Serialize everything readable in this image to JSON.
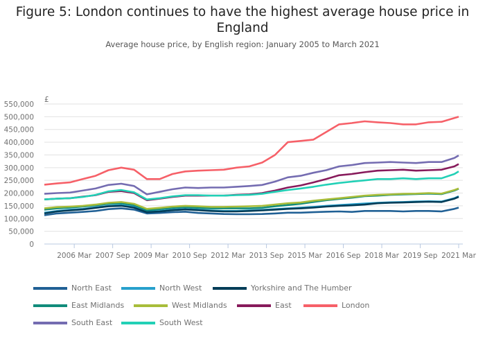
{
  "title": "Figure 5: London continues to have the highest average house price in England",
  "subtitle": "Average house price, by English region: January 2005 to March 2021",
  "chart_data": {
    "type": "line",
    "ylabel": "£",
    "ylim": [
      0,
      550000
    ],
    "yticks": [
      0,
      50000,
      100000,
      150000,
      200000,
      250000,
      300000,
      350000,
      400000,
      450000,
      500000,
      550000
    ],
    "ytick_labels": [
      "0",
      "50,000",
      "100,000",
      "150,000",
      "200,000",
      "250,000",
      "300,000",
      "350,000",
      "400,000",
      "450,000",
      "500,000",
      "550,000"
    ],
    "xlim": [
      "2005-01",
      "2021-03"
    ],
    "xticks": [
      "2006-03",
      "2007-09",
      "2009-03",
      "2010-09",
      "2012-03",
      "2013-09",
      "2015-03",
      "2016-09",
      "2018-03",
      "2019-09",
      "2021-03"
    ],
    "xtick_labels": [
      "2006 Mar",
      "2007 Sep",
      "2009 Mar",
      "2010 Sep",
      "2012 Mar",
      "2013 Sep",
      "2015 Mar",
      "2016 Sep",
      "2018 Mar",
      "2019 Sep",
      "2021 Mar"
    ],
    "grid": "horizontal",
    "legend_position": "bottom",
    "x": [
      "2005-01",
      "2005-07",
      "2006-01",
      "2006-07",
      "2007-01",
      "2007-07",
      "2008-01",
      "2008-07",
      "2009-01",
      "2009-07",
      "2010-01",
      "2010-07",
      "2011-01",
      "2011-07",
      "2012-01",
      "2012-07",
      "2013-01",
      "2013-07",
      "2014-01",
      "2014-07",
      "2015-01",
      "2015-07",
      "2016-01",
      "2016-07",
      "2017-01",
      "2017-07",
      "2018-01",
      "2018-07",
      "2019-01",
      "2019-07",
      "2020-01",
      "2020-07",
      "2021-01",
      "2021-03"
    ],
    "series": [
      {
        "name": "North East",
        "color": "#206095",
        "values": [
          113000,
          120000,
          123000,
          126000,
          130000,
          137000,
          140000,
          135000,
          120000,
          122000,
          125000,
          127000,
          122000,
          120000,
          118000,
          117000,
          117000,
          118000,
          120000,
          123000,
          123000,
          125000,
          127000,
          128000,
          126000,
          130000,
          130000,
          130000,
          128000,
          130000,
          130000,
          128000,
          138000,
          143000
        ]
      },
      {
        "name": "North West",
        "color": "#27a0cc",
        "values": [
          123000,
          130000,
          135000,
          138000,
          144000,
          150000,
          153000,
          146000,
          127000,
          130000,
          135000,
          138000,
          135000,
          132000,
          130000,
          130000,
          132000,
          134000,
          137000,
          140000,
          143000,
          146000,
          150000,
          153000,
          156000,
          159000,
          162000,
          164000,
          165000,
          167000,
          168000,
          167000,
          180000,
          188000
        ]
      },
      {
        "name": "Yorkshire and The Humber",
        "color": "#003c57",
        "values": [
          120000,
          128000,
          132000,
          136000,
          142000,
          148000,
          150000,
          143000,
          125000,
          128000,
          133000,
          136000,
          133000,
          130000,
          128000,
          128000,
          130000,
          132000,
          135000,
          138000,
          140000,
          143000,
          147000,
          150000,
          152000,
          155000,
          160000,
          162000,
          163000,
          165000,
          166000,
          165000,
          178000,
          185000
        ]
      },
      {
        "name": "East Midlands",
        "color": "#118c7b",
        "values": [
          135000,
          140000,
          143000,
          147000,
          152000,
          158000,
          160000,
          153000,
          133000,
          137000,
          142000,
          145000,
          142000,
          140000,
          140000,
          140000,
          140000,
          142000,
          148000,
          153000,
          158000,
          165000,
          172000,
          177000,
          182000,
          188000,
          190000,
          193000,
          195000,
          196000,
          198000,
          196000,
          210000,
          217000
        ]
      },
      {
        "name": "West Midlands",
        "color": "#a8bd3a",
        "values": [
          140000,
          145000,
          147000,
          150000,
          155000,
          162000,
          165000,
          158000,
          138000,
          142000,
          147000,
          150000,
          148000,
          146000,
          146000,
          147000,
          148000,
          150000,
          155000,
          160000,
          163000,
          170000,
          175000,
          180000,
          185000,
          190000,
          193000,
          195000,
          197000,
          198000,
          200000,
          198000,
          212000,
          218000
        ]
      },
      {
        "name": "East",
        "color": "#871a5b",
        "values": [
          175000,
          178000,
          180000,
          186000,
          192000,
          205000,
          208000,
          200000,
          172000,
          178000,
          185000,
          190000,
          190000,
          190000,
          190000,
          193000,
          195000,
          200000,
          210000,
          222000,
          230000,
          242000,
          255000,
          270000,
          275000,
          282000,
          288000,
          290000,
          292000,
          288000,
          290000,
          292000,
          305000,
          314000
        ]
      },
      {
        "name": "London",
        "color": "#f66068",
        "values": [
          233000,
          238000,
          242000,
          255000,
          268000,
          290000,
          300000,
          292000,
          255000,
          255000,
          275000,
          285000,
          288000,
          290000,
          292000,
          300000,
          305000,
          320000,
          350000,
          400000,
          405000,
          410000,
          440000,
          470000,
          475000,
          482000,
          478000,
          475000,
          470000,
          470000,
          478000,
          480000,
          495000,
          500000
        ]
      },
      {
        "name": "South East",
        "color": "#746cb1",
        "values": [
          197000,
          200000,
          202000,
          210000,
          218000,
          232000,
          237000,
          228000,
          195000,
          205000,
          215000,
          222000,
          220000,
          222000,
          222000,
          225000,
          228000,
          232000,
          245000,
          262000,
          268000,
          280000,
          290000,
          305000,
          310000,
          318000,
          320000,
          322000,
          320000,
          318000,
          322000,
          322000,
          338000,
          348000
        ]
      },
      {
        "name": "South West",
        "color": "#22d0b6",
        "values": [
          175000,
          178000,
          180000,
          185000,
          193000,
          207000,
          212000,
          203000,
          175000,
          180000,
          187000,
          192000,
          192000,
          190000,
          190000,
          192000,
          193000,
          197000,
          205000,
          212000,
          218000,
          225000,
          233000,
          240000,
          245000,
          250000,
          255000,
          255000,
          258000,
          255000,
          258000,
          258000,
          275000,
          285000
        ]
      }
    ]
  }
}
